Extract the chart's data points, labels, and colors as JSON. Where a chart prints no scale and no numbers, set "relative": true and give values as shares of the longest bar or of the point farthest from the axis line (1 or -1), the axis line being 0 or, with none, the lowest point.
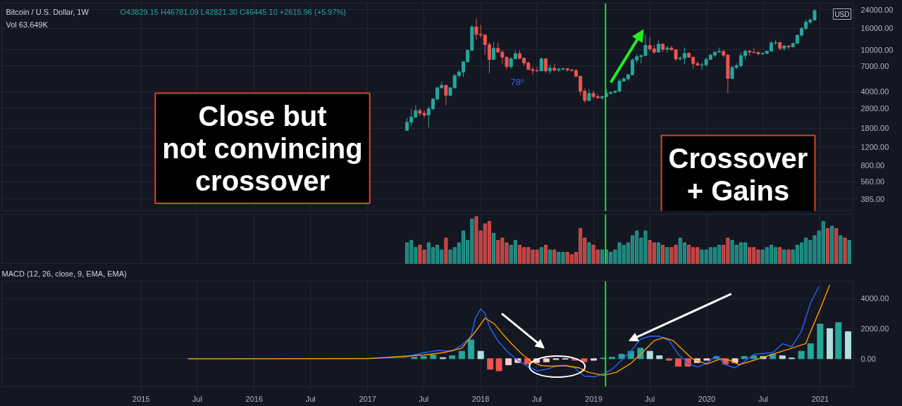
{
  "chart_data": [
    {
      "type": "candlestick",
      "title": "Bitcoin / U.S. Dollar, 1W",
      "log": "y",
      "grid": true,
      "tick_labels": "y",
      "annotations": [
        "O43829.15 H46781.09 L42821.30 C46445.10 +2615.96 (+5.97%)",
        "Vol 63.649K",
        "USD",
        "Close but\nnot convincing\ncrossover",
        "Crossover\n+ Gains",
        "78º"
      ],
      "xlim": [
        "2013-10-08",
        "2021-04-17"
      ],
      "xticks": [
        {
          "value": "2015-01-01",
          "label": null
        },
        {
          "value": "2015-07-01",
          "label": null
        },
        {
          "value": "2016-01-01",
          "label": null
        },
        {
          "value": "2016-07-01",
          "label": null
        },
        {
          "value": "2017-01-01",
          "label": null
        },
        {
          "value": "2017-07-01",
          "label": null
        },
        {
          "value": "2018-01-01",
          "label": null
        },
        {
          "value": "2018-07-01",
          "label": null
        },
        {
          "value": "2019-01-01",
          "label": null
        },
        {
          "value": "2019-07-01",
          "label": null
        },
        {
          "value": "2020-01-01",
          "label": null
        },
        {
          "value": "2020-07-01",
          "label": null
        },
        {
          "value": "2021-01-01",
          "label": null
        }
      ],
      "ylim": [
        292,
        27700
      ],
      "yticks": [
        {
          "value": 385,
          "label": "385.00"
        },
        {
          "value": 560,
          "label": "560.00"
        },
        {
          "value": 800,
          "label": "800.00"
        },
        {
          "value": 1200,
          "label": "1200.00"
        },
        {
          "value": 1800,
          "label": "1800.00"
        },
        {
          "value": 2800,
          "label": "2800.00"
        },
        {
          "value": 4000,
          "label": "4000.00"
        },
        {
          "value": 7000,
          "label": "7000.00"
        },
        {
          "value": 10000,
          "label": "10000.00"
        },
        {
          "value": 16000,
          "label": "16000.00"
        },
        {
          "value": 24000,
          "label": "24000.00"
        }
      ],
      "ref_lines": [
        {
          "axis": "x",
          "value": "2019-02-08",
          "color": "#22dd22"
        }
      ],
      "x": [
        "2017-05-08",
        "2017-05-22",
        "2017-06-05",
        "2017-06-19",
        "2017-07-03",
        "2017-07-17",
        "2017-07-31",
        "2017-08-14",
        "2017-08-28",
        "2017-09-11",
        "2017-09-25",
        "2017-10-09",
        "2017-10-23",
        "2017-11-06",
        "2017-11-20",
        "2017-12-04",
        "2017-12-18",
        "2018-01-01",
        "2018-01-15",
        "2018-01-29",
        "2018-02-12",
        "2018-02-26",
        "2018-03-12",
        "2018-03-26",
        "2018-04-09",
        "2018-04-23",
        "2018-05-07",
        "2018-05-21",
        "2018-06-04",
        "2018-06-18",
        "2018-07-02",
        "2018-07-16",
        "2018-07-30",
        "2018-08-13",
        "2018-08-27",
        "2018-09-10",
        "2018-09-24",
        "2018-10-08",
        "2018-10-22",
        "2018-11-05",
        "2018-11-19",
        "2018-12-03",
        "2018-12-17",
        "2018-12-31",
        "2019-01-14",
        "2019-01-28",
        "2019-02-11",
        "2019-02-25",
        "2019-03-11",
        "2019-03-25",
        "2019-04-08",
        "2019-04-22",
        "2019-05-06",
        "2019-05-20",
        "2019-06-03",
        "2019-06-17",
        "2019-07-01",
        "2019-07-15",
        "2019-07-29",
        "2019-08-12",
        "2019-08-26",
        "2019-09-09",
        "2019-09-23",
        "2019-10-07",
        "2019-10-21",
        "2019-11-04",
        "2019-11-18",
        "2019-12-02",
        "2019-12-16",
        "2019-12-30",
        "2020-01-13",
        "2020-01-27",
        "2020-02-10",
        "2020-02-24",
        "2020-03-09",
        "2020-03-23",
        "2020-04-06",
        "2020-04-20",
        "2020-05-04",
        "2020-05-18",
        "2020-06-01",
        "2020-06-15",
        "2020-06-29",
        "2020-07-13",
        "2020-07-27",
        "2020-08-10",
        "2020-08-24",
        "2020-09-07",
        "2020-09-21",
        "2020-10-05",
        "2020-10-19",
        "2020-11-02",
        "2020-11-16",
        "2020-11-30",
        "2020-12-14"
      ],
      "ohlc": [
        [
          1720,
          2250,
          1700,
          2050
        ],
        [
          2050,
          2760,
          1900,
          2300
        ],
        [
          2300,
          2980,
          2250,
          2650
        ],
        [
          2650,
          2760,
          2350,
          2500
        ],
        [
          2500,
          2650,
          2250,
          2400
        ],
        [
          2400,
          2900,
          1830,
          2750
        ],
        [
          2750,
          3500,
          2700,
          3400
        ],
        [
          3400,
          4480,
          3350,
          4350
        ],
        [
          4350,
          4980,
          4300,
          4600
        ],
        [
          4600,
          4650,
          2970,
          3700
        ],
        [
          3700,
          4400,
          3600,
          4350
        ],
        [
          4350,
          5850,
          4300,
          5700
        ],
        [
          5700,
          6450,
          5400,
          6150
        ],
        [
          6150,
          7800,
          5500,
          7700
        ],
        [
          7700,
          10000,
          7600,
          9900
        ],
        [
          9900,
          17200,
          9700,
          16500
        ],
        [
          16500,
          19800,
          12500,
          14000
        ],
        [
          14000,
          17200,
          13000,
          13800
        ],
        [
          13800,
          14000,
          9000,
          11200
        ],
        [
          11200,
          11800,
          6000,
          8100
        ],
        [
          8100,
          11800,
          8000,
          10300
        ],
        [
          10300,
          11700,
          9300,
          9500
        ],
        [
          9500,
          10000,
          7300,
          8500
        ],
        [
          8500,
          8600,
          6500,
          6900
        ],
        [
          6900,
          8500,
          6600,
          8200
        ],
        [
          8200,
          9800,
          8200,
          9200
        ],
        [
          9200,
          9900,
          8100,
          8300
        ],
        [
          8300,
          8500,
          7000,
          7500
        ],
        [
          7500,
          7750,
          6400,
          6500
        ],
        [
          6500,
          6900,
          5800,
          6350
        ],
        [
          6350,
          6850,
          6100,
          6300
        ],
        [
          6300,
          8500,
          6300,
          8200
        ],
        [
          8200,
          8250,
          6050,
          6300
        ],
        [
          6300,
          7200,
          5900,
          6700
        ],
        [
          6700,
          7400,
          6200,
          6400
        ],
        [
          6400,
          6800,
          6150,
          6550
        ],
        [
          6550,
          6800,
          6350,
          6600
        ],
        [
          6600,
          6700,
          6200,
          6450
        ],
        [
          6450,
          6550,
          6250,
          6350
        ],
        [
          6350,
          6550,
          5500,
          5600
        ],
        [
          5600,
          5650,
          3700,
          4050
        ],
        [
          4050,
          4300,
          3150,
          3300
        ],
        [
          3300,
          4250,
          3250,
          3850
        ],
        [
          3850,
          4100,
          3450,
          3600
        ],
        [
          3600,
          3800,
          3450,
          3500
        ],
        [
          3500,
          3650,
          3350,
          3600
        ],
        [
          3600,
          4200,
          3550,
          3850
        ],
        [
          3850,
          4000,
          3750,
          3950
        ],
        [
          3950,
          4100,
          3850,
          4050
        ],
        [
          4050,
          5300,
          3950,
          5050
        ],
        [
          5050,
          5450,
          4950,
          5300
        ],
        [
          5300,
          5900,
          5100,
          5800
        ],
        [
          5800,
          8300,
          5750,
          8000
        ],
        [
          8000,
          9100,
          7400,
          8600
        ],
        [
          8600,
          9000,
          7450,
          8800
        ],
        [
          8800,
          13900,
          8800,
          11000
        ],
        [
          11000,
          13200,
          9700,
          10200
        ],
        [
          10200,
          11100,
          9100,
          9500
        ],
        [
          9500,
          12300,
          9400,
          11300
        ],
        [
          11300,
          11500,
          9500,
          10100
        ],
        [
          10100,
          10950,
          9400,
          10400
        ],
        [
          10400,
          10900,
          9800,
          10000
        ],
        [
          10000,
          10100,
          7800,
          8200
        ],
        [
          8200,
          8700,
          7900,
          8300
        ],
        [
          8300,
          10500,
          7300,
          9250
        ],
        [
          9250,
          9500,
          8400,
          8500
        ],
        [
          8500,
          8550,
          6550,
          7400
        ],
        [
          7400,
          7750,
          7050,
          7150
        ],
        [
          7150,
          7550,
          6450,
          7200
        ],
        [
          7200,
          8450,
          6900,
          8100
        ],
        [
          8100,
          9200,
          8050,
          8900
        ],
        [
          8900,
          9600,
          8500,
          9500
        ],
        [
          9500,
          10500,
          9450,
          9650
        ],
        [
          9650,
          9950,
          8450,
          8900
        ],
        [
          8900,
          9150,
          3850,
          5350
        ],
        [
          5350,
          7000,
          5250,
          6800
        ],
        [
          6800,
          7450,
          6500,
          7050
        ],
        [
          7050,
          9450,
          6800,
          8800
        ],
        [
          8800,
          10000,
          8100,
          9700
        ],
        [
          9700,
          9950,
          8800,
          9500
        ],
        [
          9500,
          10400,
          9250,
          9400
        ],
        [
          9400,
          9800,
          8900,
          9150
        ],
        [
          9150,
          9450,
          8900,
          9250
        ],
        [
          9250,
          9800,
          9050,
          9700
        ],
        [
          9700,
          12100,
          9650,
          11600
        ],
        [
          11600,
          12450,
          11150,
          11700
        ],
        [
          11700,
          12050,
          9900,
          10300
        ],
        [
          10300,
          11150,
          9850,
          10900
        ],
        [
          10900,
          10950,
          10150,
          10650
        ],
        [
          10650,
          11700,
          10550,
          11500
        ],
        [
          11500,
          13800,
          11400,
          13750
        ],
        [
          13750,
          16500,
          13250,
          15950
        ],
        [
          15950,
          19400,
          15400,
          18350
        ],
        [
          18350,
          19900,
          17600,
          19150
        ],
        [
          19150,
          24300,
          19000,
          23500
        ]
      ],
      "colors": [
        "#26a69a",
        "#26a69a",
        "#26a69a",
        "#ef5350",
        "#ef5350",
        "#26a69a",
        "#26a69a",
        "#26a69a",
        "#26a69a",
        "#ef5350",
        "#26a69a",
        "#26a69a",
        "#26a69a",
        "#26a69a",
        "#26a69a",
        "#26a69a",
        "#ef5350",
        "#ef5350",
        "#ef5350",
        "#ef5350",
        "#26a69a",
        "#ef5350",
        "#ef5350",
        "#ef5350",
        "#26a69a",
        "#26a69a",
        "#ef5350",
        "#ef5350",
        "#ef5350",
        "#ef5350",
        "#ef5350",
        "#26a69a",
        "#ef5350",
        "#26a69a",
        "#ef5350",
        "#26a69a",
        "#26a69a",
        "#ef5350",
        "#ef5350",
        "#ef5350",
        "#ef5350",
        "#ef5350",
        "#26a69a",
        "#ef5350",
        "#ef5350",
        "#26a69a",
        "#26a69a",
        "#26a69a",
        "#26a69a",
        "#26a69a",
        "#26a69a",
        "#26a69a",
        "#26a69a",
        "#26a69a",
        "#26a69a",
        "#26a69a",
        "#ef5350",
        "#ef5350",
        "#26a69a",
        "#ef5350",
        "#26a69a",
        "#ef5350",
        "#ef5350",
        "#26a69a",
        "#26a69a",
        "#ef5350",
        "#ef5350",
        "#ef5350",
        "#26a69a",
        "#26a69a",
        "#26a69a",
        "#26a69a",
        "#26a69a",
        "#ef5350",
        "#ef5350",
        "#26a69a",
        "#26a69a",
        "#26a69a",
        "#26a69a",
        "#ef5350",
        "#ef5350",
        "#ef5350",
        "#26a69a",
        "#26a69a",
        "#26a69a",
        "#26a69a",
        "#ef5350",
        "#26a69a",
        "#ef5350",
        "#26a69a",
        "#26a69a",
        "#26a69a",
        "#26a69a",
        "#26a69a",
        "#26a69a"
      ]
    },
    {
      "type": "bar",
      "relative": true,
      "grid": "x",
      "tick_labels": false,
      "xlim": [
        "2013-10-08",
        "2021-04-17"
      ],
      "xticks": [
        {
          "value": "2015-01-01",
          "label": null
        },
        {
          "value": "2015-07-01",
          "label": null
        },
        {
          "value": "2016-01-01",
          "label": null
        },
        {
          "value": "2016-07-01",
          "label": null
        },
        {
          "value": "2017-01-01",
          "label": null
        },
        {
          "value": "2017-07-01",
          "label": null
        },
        {
          "value": "2018-01-01",
          "label": null
        },
        {
          "value": "2018-07-01",
          "label": null
        },
        {
          "value": "2019-01-01",
          "label": null
        },
        {
          "value": "2019-07-01",
          "label": null
        },
        {
          "value": "2020-01-01",
          "label": null
        },
        {
          "value": "2020-07-01",
          "label": null
        },
        {
          "value": "2021-01-01",
          "label": null
        }
      ],
      "ref_lines": [
        {
          "axis": "x",
          "value": "2019-02-08",
          "color": "#22dd22"
        }
      ],
      "x": [
        "2017-05-08",
        "2017-05-22",
        "2017-06-05",
        "2017-06-19",
        "2017-07-03",
        "2017-07-17",
        "2017-07-31",
        "2017-08-14",
        "2017-08-28",
        "2017-09-11",
        "2017-09-25",
        "2017-10-09",
        "2017-10-23",
        "2017-11-06",
        "2017-11-20",
        "2017-12-04",
        "2017-12-18",
        "2018-01-01",
        "2018-01-15",
        "2018-01-29",
        "2018-02-12",
        "2018-02-26",
        "2018-03-12",
        "2018-03-26",
        "2018-04-09",
        "2018-04-23",
        "2018-05-07",
        "2018-05-21",
        "2018-06-04",
        "2018-06-18",
        "2018-07-02",
        "2018-07-16",
        "2018-07-30",
        "2018-08-13",
        "2018-08-27",
        "2018-09-10",
        "2018-09-24",
        "2018-10-08",
        "2018-10-22",
        "2018-11-05",
        "2018-11-19",
        "2018-12-03",
        "2018-12-17",
        "2018-12-31",
        "2019-01-14",
        "2019-01-28",
        "2019-02-11",
        "2019-02-25",
        "2019-03-11",
        "2019-03-25",
        "2019-04-08",
        "2019-04-22",
        "2019-05-06",
        "2019-05-20",
        "2019-06-03",
        "2019-06-17",
        "2019-07-01",
        "2019-07-15",
        "2019-07-29",
        "2019-08-12",
        "2019-08-26",
        "2019-09-09",
        "2019-09-23",
        "2019-10-07",
        "2019-10-21",
        "2019-11-04",
        "2019-11-18",
        "2019-12-02",
        "2019-12-16",
        "2019-12-30",
        "2020-01-13",
        "2020-01-27",
        "2020-02-10",
        "2020-02-24",
        "2020-03-09",
        "2020-03-23",
        "2020-04-06",
        "2020-04-20",
        "2020-05-04",
        "2020-05-18",
        "2020-06-01",
        "2020-06-15",
        "2020-06-29",
        "2020-07-13",
        "2020-07-27",
        "2020-08-10",
        "2020-08-24",
        "2020-09-07",
        "2020-09-21",
        "2020-10-05",
        "2020-10-19",
        "2020-11-02",
        "2020-11-16",
        "2020-11-30",
        "2020-12-14",
        "2020-12-28",
        "2021-01-11",
        "2021-01-25",
        "2021-02-08",
        "2021-02-22",
        "2021-03-08",
        "2021-03-22",
        "2021-04-05"
      ],
      "values": [
        0.45,
        0.5,
        0.35,
        0.4,
        0.3,
        0.45,
        0.35,
        0.4,
        0.3,
        0.55,
        0.3,
        0.35,
        0.45,
        0.7,
        0.5,
        0.95,
        1.0,
        0.7,
        0.85,
        0.9,
        0.65,
        0.5,
        0.55,
        0.45,
        0.4,
        0.5,
        0.4,
        0.35,
        0.35,
        0.3,
        0.3,
        0.35,
        0.4,
        0.3,
        0.3,
        0.25,
        0.25,
        0.25,
        0.2,
        0.25,
        0.75,
        0.55,
        0.45,
        0.4,
        0.3,
        0.3,
        0.3,
        0.25,
        0.3,
        0.45,
        0.4,
        0.45,
        0.6,
        0.7,
        0.55,
        0.7,
        0.5,
        0.45,
        0.45,
        0.4,
        0.35,
        0.35,
        0.4,
        0.55,
        0.45,
        0.4,
        0.35,
        0.35,
        0.3,
        0.3,
        0.35,
        0.35,
        0.4,
        0.4,
        0.55,
        0.5,
        0.4,
        0.45,
        0.45,
        0.35,
        0.35,
        0.3,
        0.3,
        0.35,
        0.4,
        0.35,
        0.35,
        0.3,
        0.3,
        0.3,
        0.4,
        0.45,
        0.55,
        0.5,
        0.6,
        0.7,
        0.9,
        0.75,
        0.8,
        0.75,
        0.6,
        0.55,
        0.5
      ],
      "colors": [
        "#26a69a",
        "#26a69a",
        "#26a69a",
        "#ef5350",
        "#ef5350",
        "#26a69a",
        "#26a69a",
        "#26a69a",
        "#26a69a",
        "#ef5350",
        "#26a69a",
        "#26a69a",
        "#26a69a",
        "#26a69a",
        "#26a69a",
        "#26a69a",
        "#ef5350",
        "#ef5350",
        "#ef5350",
        "#ef5350",
        "#26a69a",
        "#ef5350",
        "#ef5350",
        "#ef5350",
        "#26a69a",
        "#26a69a",
        "#ef5350",
        "#ef5350",
        "#ef5350",
        "#ef5350",
        "#ef5350",
        "#26a69a",
        "#ef5350",
        "#26a69a",
        "#ef5350",
        "#26a69a",
        "#26a69a",
        "#ef5350",
        "#ef5350",
        "#ef5350",
        "#ef5350",
        "#ef5350",
        "#26a69a",
        "#ef5350",
        "#ef5350",
        "#26a69a",
        "#26a69a",
        "#26a69a",
        "#26a69a",
        "#26a69a",
        "#26a69a",
        "#26a69a",
        "#26a69a",
        "#26a69a",
        "#26a69a",
        "#26a69a",
        "#ef5350",
        "#ef5350",
        "#26a69a",
        "#ef5350",
        "#26a69a",
        "#ef5350",
        "#ef5350",
        "#26a69a",
        "#26a69a",
        "#ef5350",
        "#ef5350",
        "#ef5350",
        "#26a69a",
        "#26a69a",
        "#26a69a",
        "#26a69a",
        "#26a69a",
        "#ef5350",
        "#ef5350",
        "#26a69a",
        "#26a69a",
        "#26a69a",
        "#26a69a",
        "#ef5350",
        "#ef5350",
        "#ef5350",
        "#26a69a",
        "#26a69a",
        "#26a69a",
        "#26a69a",
        "#ef5350",
        "#26a69a",
        "#ef5350",
        "#26a69a",
        "#26a69a",
        "#26a69a",
        "#26a69a",
        "#26a69a",
        "#26a69a",
        "#26a69a",
        "#26a69a",
        "#ef5350",
        "#26a69a",
        "#ef5350",
        "#26a69a",
        "#ef5350",
        "#26a69a"
      ]
    },
    {
      "type": "line",
      "title": "MACD (12, 26, close, 9, EMA, EMA)",
      "grid": true,
      "line_style": "solid",
      "xlim": [
        "2013-10-08",
        "2021-04-17"
      ],
      "xticks": [
        {
          "value": "2015-01-01",
          "label": "2015"
        },
        {
          "value": "2015-07-01",
          "label": "Jul"
        },
        {
          "value": "2016-01-01",
          "label": "2016"
        },
        {
          "value": "2016-07-01",
          "label": "Jul"
        },
        {
          "value": "2017-01-01",
          "label": "2017"
        },
        {
          "value": "2017-07-01",
          "label": "Jul"
        },
        {
          "value": "2018-01-01",
          "label": "2018"
        },
        {
          "value": "2018-07-01",
          "label": "Jul"
        },
        {
          "value": "2019-01-01",
          "label": "2019"
        },
        {
          "value": "2019-07-01",
          "label": "Jul"
        },
        {
          "value": "2020-01-01",
          "label": "2020"
        },
        {
          "value": "2020-07-01",
          "label": "Jul"
        },
        {
          "value": "2021-01-01",
          "label": "2021"
        }
      ],
      "ylim": [
        -1850,
        5150
      ],
      "yticks": [
        {
          "value": 0,
          "label": "0.00"
        },
        {
          "value": 2000,
          "label": "2000.00"
        },
        {
          "value": 4000,
          "label": "4000.00"
        }
      ],
      "ref_lines": [
        {
          "axis": "x",
          "value": "2019-02-08",
          "color": "#22dd22"
        }
      ],
      "series": [
        {
          "type": "bar",
          "x": [
            "2017-06",
            "2017-07",
            "2017-08",
            "2017-09",
            "2017-10",
            "2017-11",
            "2017-12",
            "2018-01",
            "2018-02",
            "2018-03",
            "2018-04",
            "2018-05",
            "2018-06",
            "2018-07",
            "2018-08",
            "2018-09",
            "2018-10",
            "2018-11",
            "2018-12",
            "2019-01",
            "2019-02",
            "2019-03",
            "2019-04",
            "2019-05",
            "2019-06",
            "2019-07",
            "2019-08",
            "2019-09",
            "2019-10",
            "2019-11",
            "2019-12",
            "2020-01",
            "2020-02",
            "2020-03",
            "2020-04",
            "2020-05",
            "2020-06",
            "2020-07",
            "2020-08",
            "2020-09",
            "2020-10",
            "2020-11",
            "2020-12",
            "2021-01",
            "2021-02",
            "2021-03",
            "2021-04"
          ],
          "values": [
            100,
            150,
            250,
            80,
            200,
            500,
            1250,
            500,
            -700,
            -800,
            -400,
            -250,
            -350,
            -250,
            -200,
            -50,
            -30,
            -100,
            -200,
            -100,
            50,
            100,
            300,
            500,
            700,
            500,
            200,
            -100,
            -500,
            -500,
            -250,
            -100,
            150,
            -350,
            -250,
            150,
            200,
            150,
            300,
            200,
            50,
            500,
            1000,
            2300,
            2000,
            2400,
            1800
          ],
          "colors": [
            "#26a69a",
            "#26a69a",
            "#26a69a",
            "#b2dfdb",
            "#26a69a",
            "#26a69a",
            "#26a69a",
            "#b2dfdb",
            "#ef5350",
            "#ef5350",
            "#ffcdd2",
            "#ffcdd2",
            "#ef5350",
            "#ffcdd2",
            "#ffcdd2",
            "#ffcdd2",
            "#ffcdd2",
            "#ef5350",
            "#ef5350",
            "#ffcdd2",
            "#26a69a",
            "#26a69a",
            "#26a69a",
            "#26a69a",
            "#26a69a",
            "#b2dfdb",
            "#b2dfdb",
            "#ef5350",
            "#ef5350",
            "#ef5350",
            "#ffcdd2",
            "#ffcdd2",
            "#26a69a",
            "#ef5350",
            "#ffcdd2",
            "#26a69a",
            "#26a69a",
            "#b2dfdb",
            "#26a69a",
            "#b2dfdb",
            "#b2dfdb",
            "#26a69a",
            "#26a69a",
            "#26a69a",
            "#b2dfdb",
            "#26a69a",
            "#b2dfdb"
          ]
        },
        {
          "color": "#2962ff",
          "x": [
            "2015-06",
            "2016-01",
            "2017-01",
            "2017-05",
            "2017-07",
            "2017-08-15",
            "2017-10",
            "2017-11",
            "2017-12-01",
            "2017-12-15",
            "2018-01-01",
            "2018-01-15",
            "2018-02-01",
            "2018-03",
            "2018-04",
            "2018-05",
            "2018-06",
            "2018-07",
            "2018-08",
            "2018-09",
            "2018-10",
            "2018-11",
            "2018-12",
            "2019-01",
            "2019-02",
            "2019-03",
            "2019-04",
            "2019-05",
            "2019-06",
            "2019-07",
            "2019-08",
            "2019-09",
            "2019-10",
            "2019-11",
            "2019-12",
            "2020-01",
            "2020-02",
            "2020-03",
            "2020-04",
            "2020-05",
            "2020-06",
            "2020-08",
            "2020-09",
            "2020-10",
            "2020-11",
            "2020-12",
            "2020-12-28"
          ],
          "values": [
            0,
            0,
            20,
            100,
            400,
            550,
            500,
            900,
            1500,
            2700,
            3300,
            3000,
            2000,
            1100,
            400,
            -100,
            -500,
            -800,
            -700,
            -500,
            -450,
            -600,
            -1150,
            -1200,
            -1000,
            -700,
            -100,
            500,
            1300,
            1500,
            1500,
            1200,
            300,
            -300,
            -550,
            -300,
            200,
            -400,
            -600,
            -200,
            300,
            400,
            1000,
            800,
            1800,
            3700,
            4800
          ]
        },
        {
          "color": "#ff9800",
          "x": [
            "2015-06",
            "2017-01",
            "2017-07",
            "2017-09",
            "2017-11",
            "2017-12-15",
            "2018-01-15",
            "2018-02-15",
            "2018-03-15",
            "2018-04-15",
            "2018-05-15",
            "2018-06-15",
            "2018-07-15",
            "2018-08-15",
            "2018-10-01",
            "2018-11-15",
            "2018-12-15",
            "2019-02-01",
            "2019-03-15",
            "2019-05-01",
            "2019-06-01",
            "2019-07-15",
            "2019-08-15",
            "2019-09-15",
            "2019-10-15",
            "2019-11-15",
            "2020-01-01",
            "2020-02-15",
            "2020-03-15",
            "2020-04-15",
            "2020-06-01",
            "2020-08-01",
            "2020-10-01",
            "2020-11-15",
            "2020-12-01",
            "2021-01-01",
            "2021-02-01"
          ],
          "values": [
            0,
            10,
            250,
            400,
            700,
            1800,
            2700,
            2300,
            1600,
            900,
            300,
            -200,
            -450,
            -500,
            -450,
            -600,
            -900,
            -1100,
            -900,
            -300,
            300,
            1200,
            1400,
            1200,
            600,
            0,
            -350,
            0,
            -100,
            -400,
            -100,
            300,
            700,
            1000,
            1800,
            3300,
            4900
          ]
        }
      ]
    }
  ]
}
